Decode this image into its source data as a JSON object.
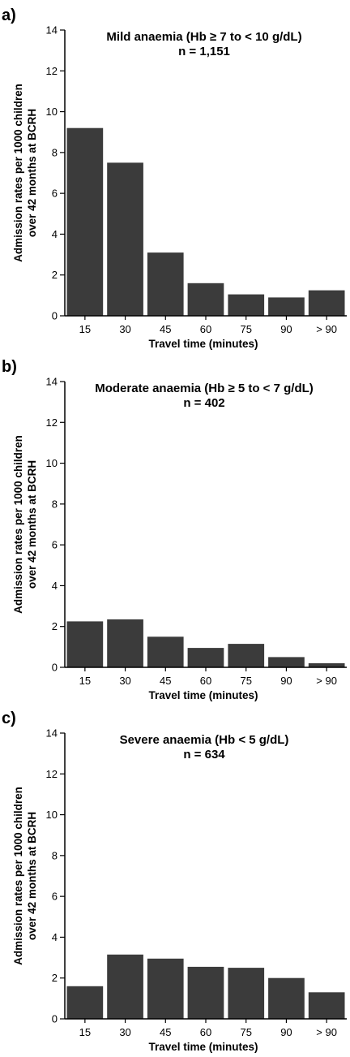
{
  "chart_data": [
    {
      "type": "bar",
      "panel_label": "a)",
      "title": "Mild anaemia (Hb ≥ 7 to < 10 g/dL)",
      "subtitle": "n = 1,151",
      "xlabel": "Travel time (minutes)",
      "ylabel_line1": "Admission rates  per 1000 children",
      "ylabel_line2": "over 42 months at BCRH",
      "categories": [
        "15",
        "30",
        "45",
        "60",
        "75",
        "90",
        "> 90"
      ],
      "values": [
        9.2,
        7.5,
        3.1,
        1.6,
        1.05,
        0.9,
        1.25
      ],
      "ylim": [
        0,
        14
      ],
      "yticks": [
        "0",
        "2",
        "4",
        "6",
        "8",
        "10",
        "12",
        "14"
      ],
      "bar_color": "#3b3b3b"
    },
    {
      "type": "bar",
      "panel_label": "b)",
      "title": "Moderate anaemia (Hb ≥ 5 to < 7 g/dL)",
      "subtitle": "n = 402",
      "xlabel": "Travel time (minutes)",
      "ylabel_line1": "Admission rates  per 1000 children",
      "ylabel_line2": "over 42 months at BCRH",
      "categories": [
        "15",
        "30",
        "45",
        "60",
        "75",
        "90",
        "> 90"
      ],
      "values": [
        2.25,
        2.35,
        1.5,
        0.95,
        1.15,
        0.5,
        0.2
      ],
      "ylim": [
        0,
        14
      ],
      "yticks": [
        "0",
        "2",
        "4",
        "6",
        "8",
        "10",
        "12",
        "14"
      ],
      "bar_color": "#3b3b3b"
    },
    {
      "type": "bar",
      "panel_label": "c)",
      "title": "Severe anaemia (Hb < 5 g/dL)",
      "subtitle": "n = 634",
      "xlabel": "Travel time (minutes)",
      "ylabel_line1": "Admission rates  per 1000 children",
      "ylabel_line2": "over 42 months at BCRH",
      "categories": [
        "15",
        "30",
        "45",
        "60",
        "75",
        "90",
        "> 90"
      ],
      "values": [
        1.6,
        3.15,
        2.95,
        2.55,
        2.5,
        2.0,
        1.3
      ],
      "ylim": [
        0,
        14
      ],
      "yticks": [
        "0",
        "2",
        "4",
        "6",
        "8",
        "10",
        "12",
        "14"
      ],
      "bar_color": "#3b3b3b"
    }
  ]
}
